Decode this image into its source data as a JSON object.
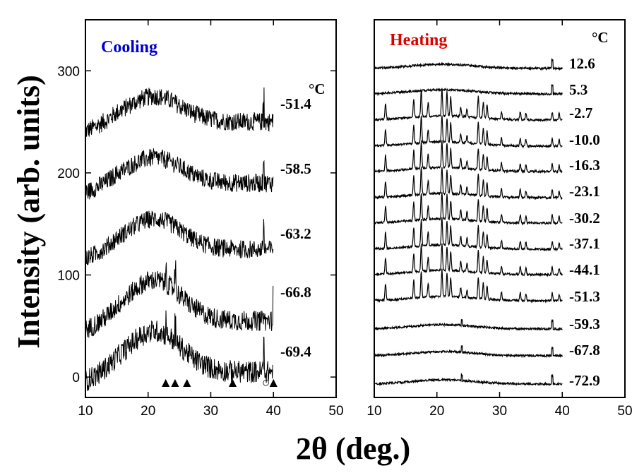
{
  "figure": {
    "ylabel": "Intensity (arb. units)",
    "xlabel": "2θ (deg.)"
  },
  "chart_data": [
    {
      "type": "line",
      "title": "Cooling",
      "title_color": "#0000cc",
      "x_ticks": [
        10,
        20,
        30,
        40,
        50
      ],
      "y_ticks": [
        0,
        100,
        200,
        300
      ],
      "xlim": [
        10,
        50
      ],
      "ylim": [
        -20,
        350
      ],
      "unit": "°C",
      "series": [
        {
          "label": "-51.4",
          "baseline": 250,
          "hump": 25,
          "noise": 9
        },
        {
          "label": "-58.5",
          "baseline": 190,
          "hump": 25,
          "noise": 9
        },
        {
          "label": "-63.2",
          "baseline": 125,
          "hump": 30,
          "noise": 9
        },
        {
          "label": "-66.8",
          "baseline": 55,
          "hump": 40,
          "noise": 10
        },
        {
          "label": "-69.4",
          "baseline": 5,
          "hump": 40,
          "noise": 11
        }
      ],
      "markers": [
        {
          "symbol": "▲",
          "x": 22.8
        },
        {
          "symbol": "▲",
          "x": 24.3
        },
        {
          "symbol": "▲",
          "x": 26.2
        },
        {
          "symbol": "▲",
          "x": 33.5
        },
        {
          "symbol": "○",
          "x": 38.8
        },
        {
          "symbol": "▲",
          "x": 40.0
        }
      ]
    },
    {
      "type": "line",
      "title": "Heating",
      "title_color": "#dd0000",
      "x_ticks": [
        10,
        20,
        30,
        40,
        50
      ],
      "xlim": [
        10,
        50
      ],
      "unit": "°C",
      "series": [
        {
          "label": "12.6",
          "crystalline": false
        },
        {
          "label": "5.3",
          "crystalline": false
        },
        {
          "label": "-2.7",
          "crystalline": true
        },
        {
          "label": "-10.0",
          "crystalline": true
        },
        {
          "label": "-16.3",
          "crystalline": true
        },
        {
          "label": "-23.1",
          "crystalline": true
        },
        {
          "label": "-30.2",
          "crystalline": true
        },
        {
          "label": "-37.1",
          "crystalline": true
        },
        {
          "label": "-44.1",
          "crystalline": true
        },
        {
          "label": "-51.3",
          "crystalline": true
        },
        {
          "label": "-59.3",
          "crystalline": false
        },
        {
          "label": "-67.8",
          "crystalline": false
        },
        {
          "label": "-72.9",
          "crystalline": false
        }
      ]
    }
  ]
}
